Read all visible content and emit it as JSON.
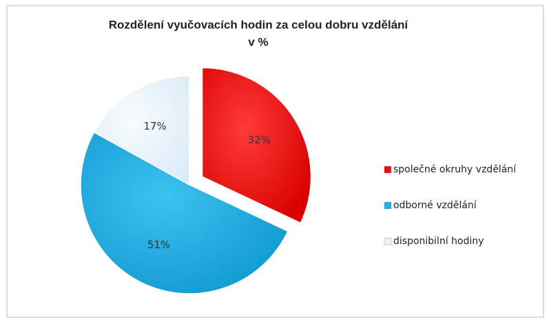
{
  "chart_data": {
    "type": "pie",
    "title": "Rozdělení vyučovacích hodin za celou dobru vzdělání",
    "subtitle": "v %",
    "categories": [
      "společné okruhy vzdělání",
      "odborné vzdělání",
      "disponibilní hodiny"
    ],
    "values": [
      32,
      51,
      17
    ],
    "value_labels": [
      "32%",
      "51%",
      "17%"
    ],
    "colors": [
      "#f20d0d",
      "#1eb0e6",
      "#eaf4fb"
    ],
    "exploded": [
      0
    ],
    "legend": "right"
  }
}
